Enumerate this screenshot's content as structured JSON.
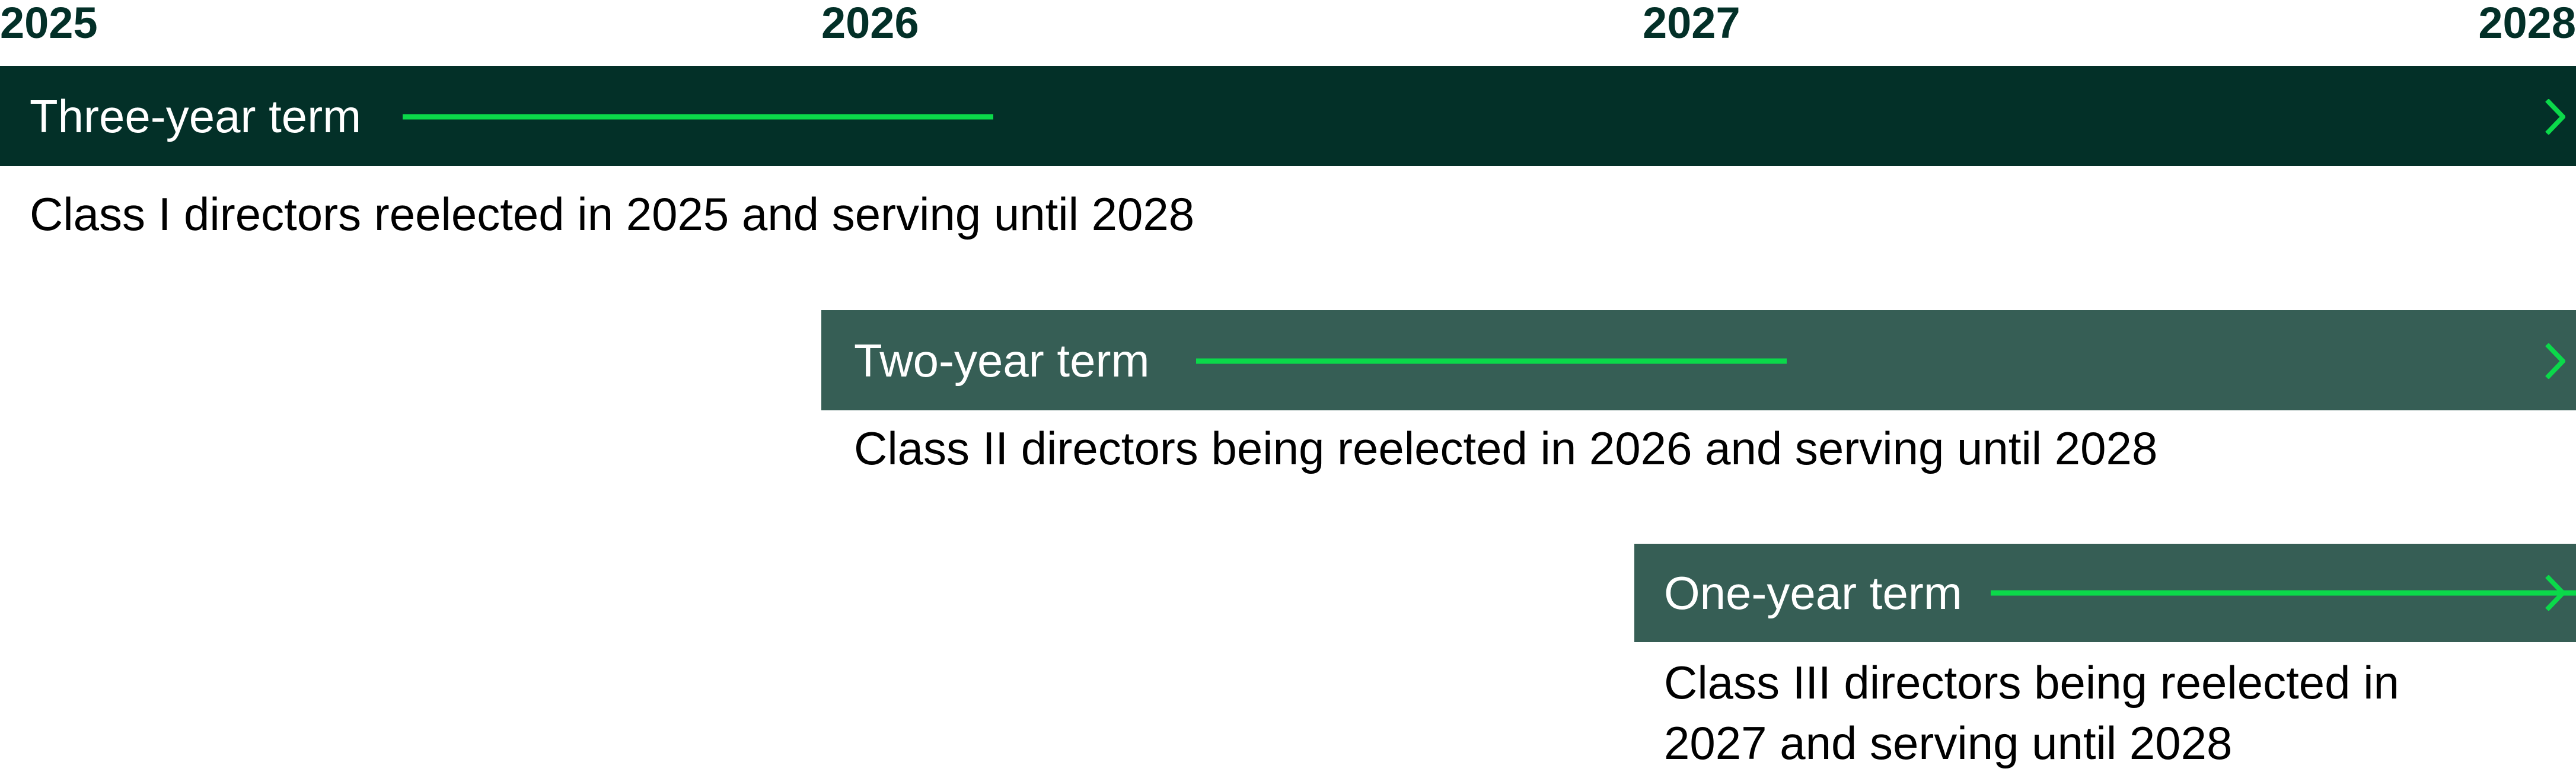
{
  "colors": {
    "year_text": "#033028",
    "bar_dark": "#033028",
    "bar_medium": "#365e55",
    "arrow": "#0bd94a"
  },
  "years": [
    "2025",
    "2026",
    "2027",
    "2028"
  ],
  "terms": [
    {
      "label": "Three-year term",
      "description": "Class I directors reelected in 2025 and serving until 2028",
      "start": "2025",
      "end": "2028"
    },
    {
      "label": "Two-year term",
      "description": "Class II directors being reelected in 2026 and serving until 2028",
      "start": "2026",
      "end": "2028"
    },
    {
      "label": "One-year term",
      "description_lines": [
        "Class III directors being reelected in",
        "2027 and serving until 2028"
      ],
      "start": "2027",
      "end": "2028"
    }
  ]
}
